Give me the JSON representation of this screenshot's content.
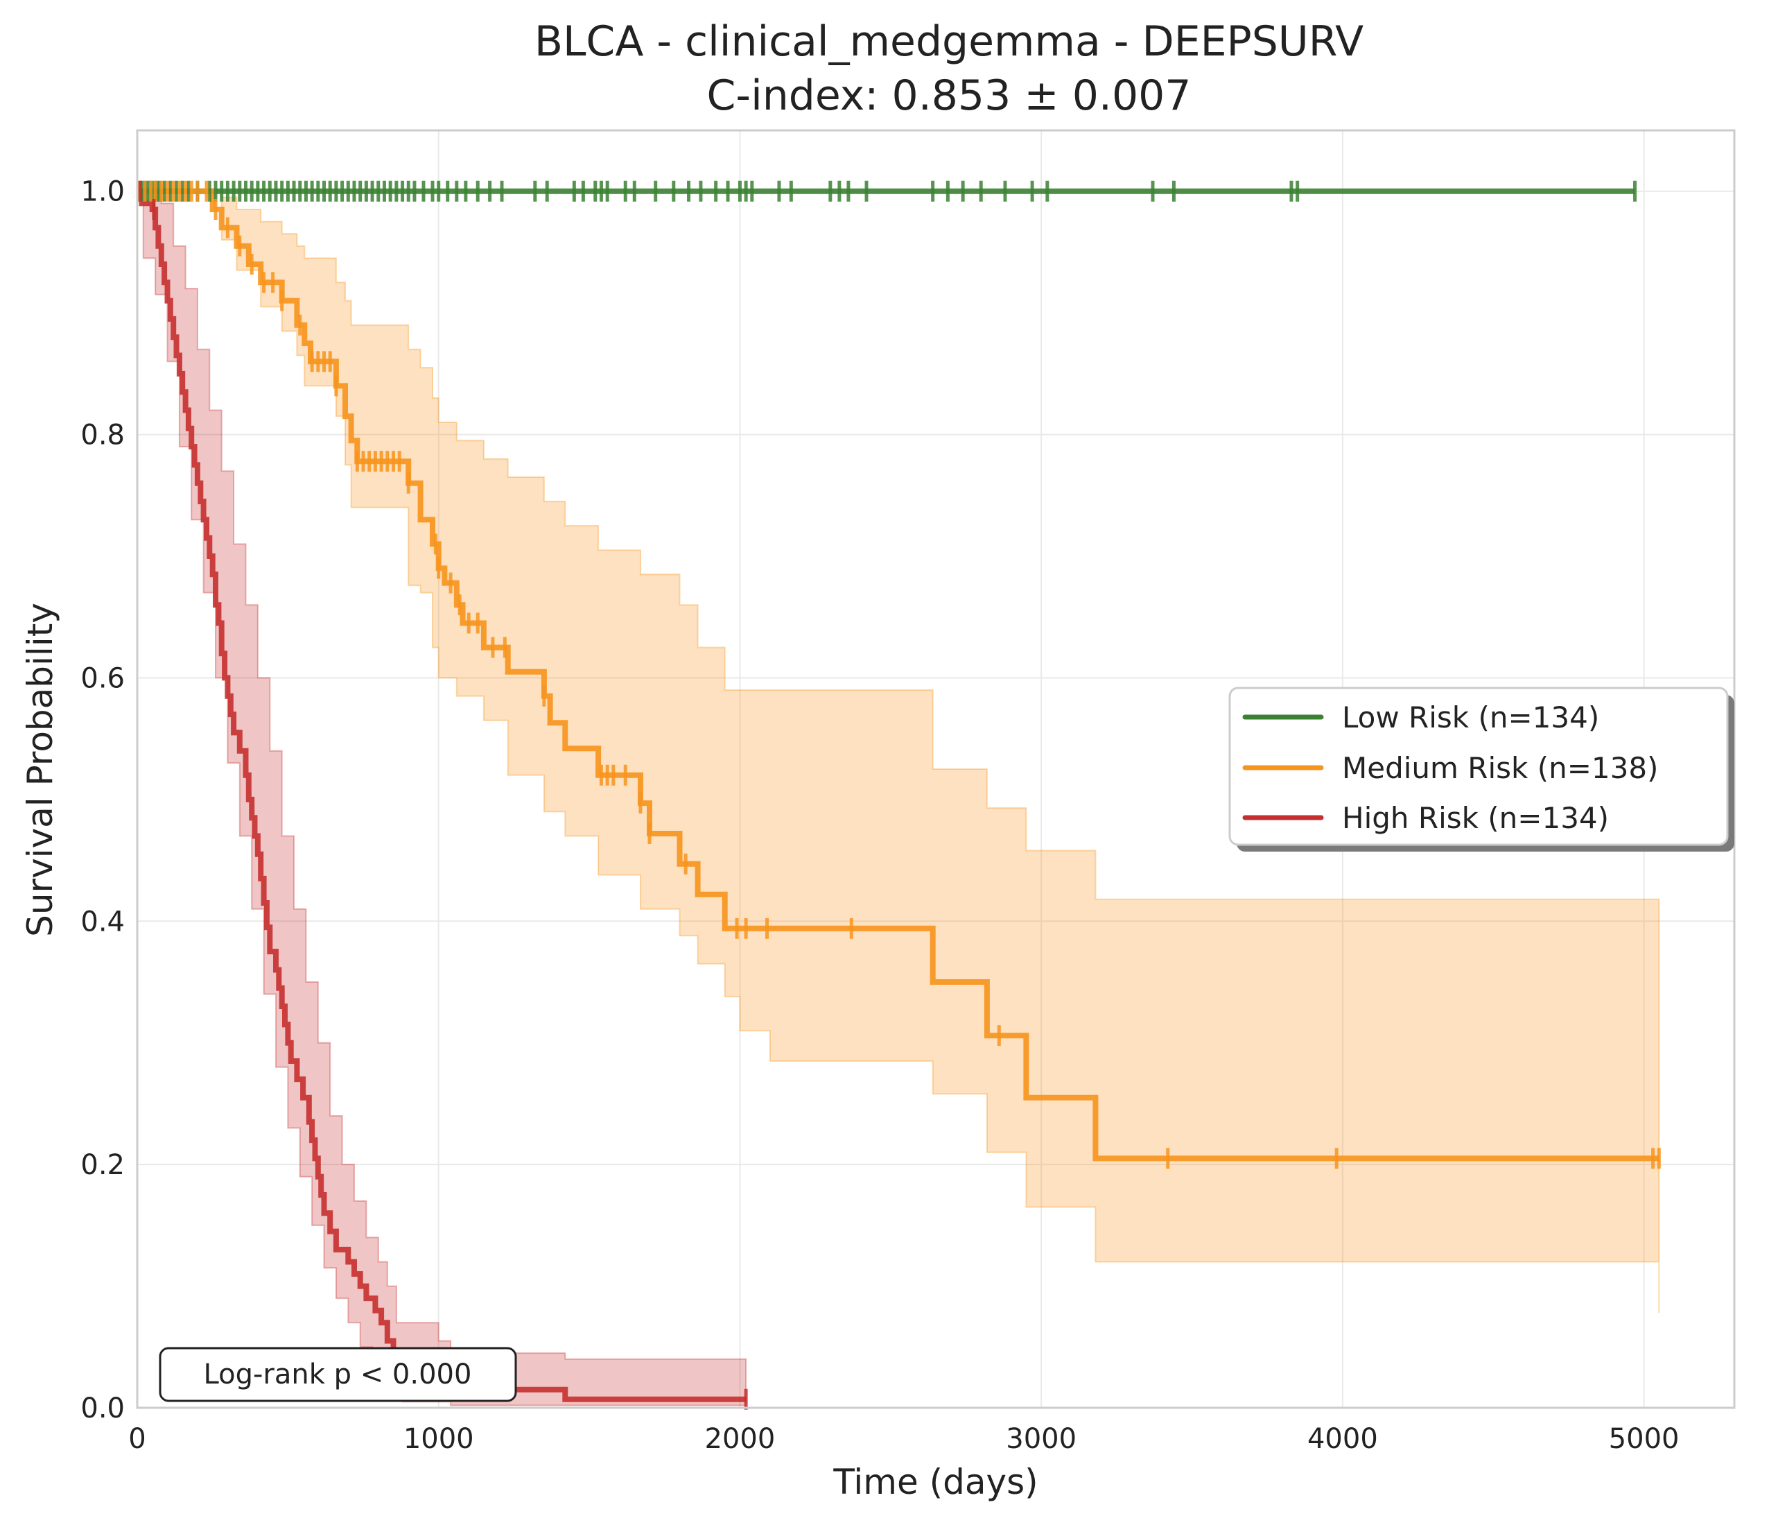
{
  "chart_data": {
    "type": "line",
    "title": "BLCA - clinical_medgemma - DEEPSURV",
    "subtitle": "C-index: 0.853 ± 0.007",
    "xlabel": "Time (days)",
    "ylabel": "Survival Probability",
    "xlim": [
      0,
      5300
    ],
    "ylim": [
      0,
      1.05
    ],
    "xticks": [
      0,
      1000,
      2000,
      3000,
      4000,
      5000
    ],
    "xtick_labels": [
      "0",
      "1000",
      "2000",
      "3000",
      "4000",
      "5000"
    ],
    "yticks": [
      0,
      0.2,
      0.4,
      0.6,
      0.8,
      1.0
    ],
    "ytick_labels": [
      "0.0",
      "0.2",
      "0.4",
      "0.6",
      "0.8",
      "1.0"
    ],
    "grid": true,
    "legend_position": "center-right",
    "annotation": "Log-rank p < 0.000",
    "series": [
      {
        "name": "Low Risk (n=134)",
        "color": "#3b8132",
        "steps": [
          [
            0,
            1.0
          ],
          [
            4970,
            1.0
          ]
        ],
        "ci_upper": [],
        "ci_lower": [],
        "censored": [
          5,
          15,
          25,
          35,
          45,
          55,
          65,
          75,
          90,
          110,
          130,
          150,
          170,
          200,
          240,
          260,
          280,
          300,
          320,
          340,
          360,
          380,
          400,
          420,
          440,
          460,
          480,
          500,
          520,
          540,
          560,
          580,
          600,
          620,
          640,
          660,
          680,
          700,
          720,
          740,
          760,
          780,
          800,
          820,
          840,
          860,
          880,
          900,
          920,
          950,
          980,
          1000,
          1030,
          1060,
          1090,
          1130,
          1170,
          1210,
          1320,
          1360,
          1450,
          1480,
          1520,
          1540,
          1560,
          1620,
          1650,
          1720,
          1780,
          1830,
          1870,
          1920,
          1960,
          2000,
          2020,
          2040,
          2130,
          2170,
          2300,
          2330,
          2360,
          2420,
          2640,
          2690,
          2740,
          2800,
          2880,
          2970,
          3020,
          3370,
          3440,
          3830,
          3850,
          4970
        ]
      },
      {
        "name": "Medium Risk (n=138)",
        "color": "#f7941d",
        "steps": [
          [
            0,
            1.0
          ],
          [
            250,
            1.0
          ],
          [
            250,
            0.985
          ],
          [
            280,
            0.985
          ],
          [
            280,
            0.97
          ],
          [
            330,
            0.97
          ],
          [
            330,
            0.955
          ],
          [
            370,
            0.955
          ],
          [
            370,
            0.94
          ],
          [
            410,
            0.94
          ],
          [
            410,
            0.925
          ],
          [
            480,
            0.925
          ],
          [
            480,
            0.91
          ],
          [
            530,
            0.91
          ],
          [
            530,
            0.89
          ],
          [
            555,
            0.89
          ],
          [
            555,
            0.875
          ],
          [
            575,
            0.875
          ],
          [
            575,
            0.86
          ],
          [
            660,
            0.86
          ],
          [
            660,
            0.84
          ],
          [
            690,
            0.84
          ],
          [
            690,
            0.815
          ],
          [
            710,
            0.815
          ],
          [
            710,
            0.795
          ],
          [
            730,
            0.795
          ],
          [
            730,
            0.778
          ],
          [
            900,
            0.778
          ],
          [
            900,
            0.76
          ],
          [
            940,
            0.76
          ],
          [
            940,
            0.73
          ],
          [
            980,
            0.73
          ],
          [
            980,
            0.71
          ],
          [
            1000,
            0.71
          ],
          [
            1000,
            0.69
          ],
          [
            1020,
            0.69
          ],
          [
            1020,
            0.678
          ],
          [
            1060,
            0.678
          ],
          [
            1060,
            0.66
          ],
          [
            1080,
            0.66
          ],
          [
            1080,
            0.645
          ],
          [
            1150,
            0.645
          ],
          [
            1150,
            0.625
          ],
          [
            1230,
            0.625
          ],
          [
            1230,
            0.605
          ],
          [
            1350,
            0.605
          ],
          [
            1350,
            0.585
          ],
          [
            1370,
            0.585
          ],
          [
            1370,
            0.563
          ],
          [
            1420,
            0.563
          ],
          [
            1420,
            0.542
          ],
          [
            1530,
            0.542
          ],
          [
            1530,
            0.52
          ],
          [
            1670,
            0.52
          ],
          [
            1670,
            0.497
          ],
          [
            1700,
            0.497
          ],
          [
            1700,
            0.472
          ],
          [
            1800,
            0.472
          ],
          [
            1800,
            0.447
          ],
          [
            1860,
            0.447
          ],
          [
            1860,
            0.422
          ],
          [
            1950,
            0.422
          ],
          [
            1950,
            0.394
          ],
          [
            2640,
            0.394
          ],
          [
            2640,
            0.35
          ],
          [
            2820,
            0.35
          ],
          [
            2820,
            0.306
          ],
          [
            2950,
            0.306
          ],
          [
            2950,
            0.255
          ],
          [
            3180,
            0.255
          ],
          [
            3180,
            0.205
          ],
          [
            5050,
            0.205
          ]
        ],
        "ci_upper": [
          [
            250,
            1.0
          ],
          [
            280,
            0.995
          ],
          [
            330,
            0.985
          ],
          [
            410,
            0.975
          ],
          [
            480,
            0.965
          ],
          [
            530,
            0.955
          ],
          [
            555,
            0.945
          ],
          [
            660,
            0.925
          ],
          [
            690,
            0.91
          ],
          [
            710,
            0.89
          ],
          [
            900,
            0.87
          ],
          [
            940,
            0.855
          ],
          [
            980,
            0.83
          ],
          [
            1000,
            0.81
          ],
          [
            1060,
            0.795
          ],
          [
            1150,
            0.78
          ],
          [
            1230,
            0.765
          ],
          [
            1350,
            0.745
          ],
          [
            1420,
            0.725
          ],
          [
            1530,
            0.705
          ],
          [
            1670,
            0.685
          ],
          [
            1800,
            0.66
          ],
          [
            1860,
            0.625
          ],
          [
            1950,
            0.59
          ],
          [
            2640,
            0.525
          ],
          [
            2820,
            0.493
          ],
          [
            2950,
            0.458
          ],
          [
            3180,
            0.418
          ],
          [
            5050,
            0.372
          ]
        ],
        "ci_lower": [
          [
            250,
            1.0
          ],
          [
            280,
            0.96
          ],
          [
            330,
            0.935
          ],
          [
            410,
            0.905
          ],
          [
            480,
            0.885
          ],
          [
            530,
            0.865
          ],
          [
            555,
            0.84
          ],
          [
            660,
            0.815
          ],
          [
            690,
            0.775
          ],
          [
            710,
            0.74
          ],
          [
            900,
            0.676
          ],
          [
            940,
            0.67
          ],
          [
            980,
            0.625
          ],
          [
            1000,
            0.6
          ],
          [
            1060,
            0.585
          ],
          [
            1150,
            0.565
          ],
          [
            1230,
            0.52
          ],
          [
            1350,
            0.49
          ],
          [
            1420,
            0.47
          ],
          [
            1530,
            0.438
          ],
          [
            1670,
            0.41
          ],
          [
            1800,
            0.388
          ],
          [
            1860,
            0.365
          ],
          [
            1950,
            0.338
          ],
          [
            2000,
            0.31
          ],
          [
            2100,
            0.285
          ],
          [
            2640,
            0.258
          ],
          [
            2820,
            0.21
          ],
          [
            2950,
            0.165
          ],
          [
            3180,
            0.12
          ],
          [
            5050,
            0.078
          ]
        ],
        "censored": [
          5,
          25,
          45,
          60,
          80,
          100,
          120,
          140,
          160,
          180,
          200,
          230,
          260,
          300,
          340,
          380,
          420,
          450,
          480,
          540,
          580,
          600,
          620,
          640,
          660,
          730,
          750,
          770,
          790,
          810,
          830,
          850,
          870,
          900,
          990,
          1000,
          1040,
          1070,
          1100,
          1130,
          1180,
          1220,
          1350,
          1540,
          1560,
          1580,
          1620,
          1670,
          1700,
          1820,
          1990,
          2020,
          2090,
          2370,
          2860,
          3420,
          3980,
          5030,
          5050
        ]
      },
      {
        "name": "High Risk (n=134)",
        "color": "#c62f2f",
        "steps": [
          [
            0,
            1.0
          ],
          [
            15,
            0.99
          ],
          [
            50,
            0.985
          ],
          [
            60,
            0.97
          ],
          [
            70,
            0.955
          ],
          [
            80,
            0.94
          ],
          [
            90,
            0.925
          ],
          [
            100,
            0.91
          ],
          [
            110,
            0.895
          ],
          [
            120,
            0.88
          ],
          [
            130,
            0.865
          ],
          [
            140,
            0.85
          ],
          [
            150,
            0.835
          ],
          [
            160,
            0.82
          ],
          [
            170,
            0.805
          ],
          [
            180,
            0.79
          ],
          [
            190,
            0.775
          ],
          [
            200,
            0.76
          ],
          [
            210,
            0.745
          ],
          [
            220,
            0.73
          ],
          [
            230,
            0.715
          ],
          [
            240,
            0.7
          ],
          [
            250,
            0.685
          ],
          [
            260,
            0.66
          ],
          [
            270,
            0.645
          ],
          [
            280,
            0.62
          ],
          [
            290,
            0.6
          ],
          [
            300,
            0.585
          ],
          [
            310,
            0.57
          ],
          [
            320,
            0.555
          ],
          [
            340,
            0.54
          ],
          [
            360,
            0.52
          ],
          [
            370,
            0.5
          ],
          [
            380,
            0.485
          ],
          [
            390,
            0.47
          ],
          [
            400,
            0.455
          ],
          [
            410,
            0.435
          ],
          [
            420,
            0.415
          ],
          [
            430,
            0.395
          ],
          [
            440,
            0.375
          ],
          [
            460,
            0.36
          ],
          [
            470,
            0.345
          ],
          [
            480,
            0.33
          ],
          [
            490,
            0.315
          ],
          [
            500,
            0.3
          ],
          [
            510,
            0.285
          ],
          [
            530,
            0.27
          ],
          [
            550,
            0.255
          ],
          [
            570,
            0.235
          ],
          [
            580,
            0.22
          ],
          [
            590,
            0.205
          ],
          [
            600,
            0.19
          ],
          [
            610,
            0.175
          ],
          [
            620,
            0.16
          ],
          [
            640,
            0.145
          ],
          [
            660,
            0.13
          ],
          [
            700,
            0.12
          ],
          [
            720,
            0.11
          ],
          [
            740,
            0.1
          ],
          [
            760,
            0.09
          ],
          [
            790,
            0.08
          ],
          [
            810,
            0.07
          ],
          [
            830,
            0.055
          ],
          [
            850,
            0.04
          ],
          [
            880,
            0.03
          ],
          [
            950,
            0.025
          ],
          [
            1040,
            0.015
          ],
          [
            1420,
            0.007
          ],
          [
            2020,
            0.007
          ]
        ],
        "ci_upper": [
          [
            0,
            1.0
          ],
          [
            50,
            1.0
          ],
          [
            80,
            0.99
          ],
          [
            120,
            0.955
          ],
          [
            160,
            0.92
          ],
          [
            200,
            0.87
          ],
          [
            240,
            0.82
          ],
          [
            280,
            0.77
          ],
          [
            320,
            0.71
          ],
          [
            360,
            0.66
          ],
          [
            400,
            0.6
          ],
          [
            440,
            0.54
          ],
          [
            480,
            0.47
          ],
          [
            520,
            0.41
          ],
          [
            560,
            0.35
          ],
          [
            600,
            0.3
          ],
          [
            640,
            0.24
          ],
          [
            680,
            0.2
          ],
          [
            720,
            0.17
          ],
          [
            760,
            0.14
          ],
          [
            800,
            0.12
          ],
          [
            830,
            0.1
          ],
          [
            860,
            0.07
          ],
          [
            1000,
            0.055
          ],
          [
            1040,
            0.045
          ],
          [
            1420,
            0.04
          ],
          [
            2020,
            0.04
          ]
        ],
        "ci_lower": [
          [
            0,
            1.0
          ],
          [
            20,
            0.945
          ],
          [
            60,
            0.915
          ],
          [
            100,
            0.86
          ],
          [
            140,
            0.79
          ],
          [
            180,
            0.73
          ],
          [
            220,
            0.67
          ],
          [
            260,
            0.6
          ],
          [
            300,
            0.53
          ],
          [
            340,
            0.47
          ],
          [
            380,
            0.41
          ],
          [
            420,
            0.34
          ],
          [
            460,
            0.28
          ],
          [
            500,
            0.23
          ],
          [
            540,
            0.19
          ],
          [
            580,
            0.15
          ],
          [
            620,
            0.115
          ],
          [
            660,
            0.09
          ],
          [
            700,
            0.07
          ],
          [
            740,
            0.05
          ],
          [
            780,
            0.035
          ],
          [
            820,
            0.02
          ],
          [
            850,
            0.01
          ],
          [
            880,
            0.005
          ],
          [
            1040,
            0.002
          ],
          [
            2020,
            0.002
          ]
        ],
        "censored": [
          10,
          55,
          950,
          1030,
          2020
        ]
      }
    ]
  }
}
